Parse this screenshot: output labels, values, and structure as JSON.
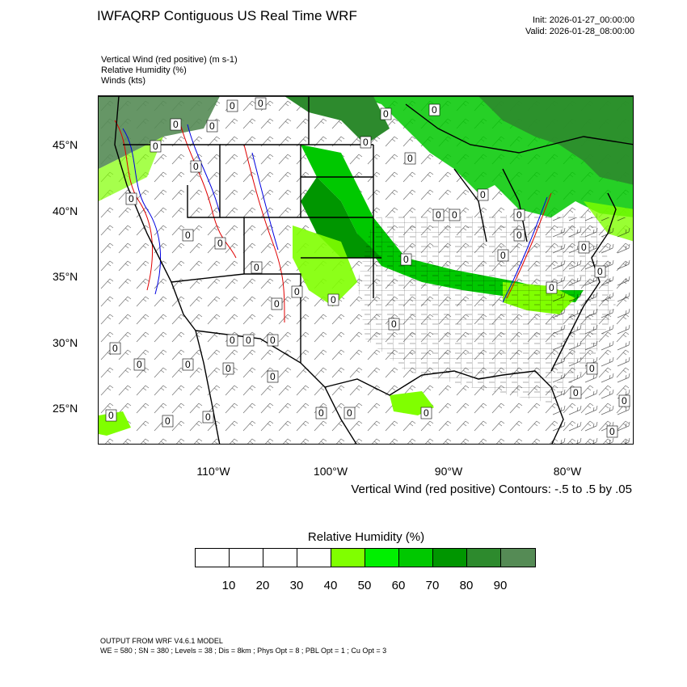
{
  "header": {
    "title": "IWFAQRP Contiguous US Real Time WRF",
    "init": "Init: 2026-01-27_00:00:00",
    "valid": "Valid: 2026-01-28_08:00:00"
  },
  "variables": [
    "Vertical Wind (red positive)   (m s-1)",
    "Relative Humidity   (%)",
    "Winds   (kts)"
  ],
  "map": {
    "lat_labels": [
      "45°N",
      "40°N",
      "35°N",
      "30°N",
      "25°N"
    ],
    "lon_labels": [
      "110°W",
      "100°W",
      "90°W",
      "80°W"
    ],
    "contour_note": "Vertical Wind (red positive) Contours: -.5 to .5 by .05",
    "contour_label": "0"
  },
  "colorbar": {
    "title": "Relative Humidity  (%)",
    "labels": [
      "10",
      "20",
      "30",
      "40",
      "50",
      "60",
      "70",
      "80",
      "90"
    ],
    "colors": [
      "#ffffff",
      "#ffffff",
      "#ffffff",
      "#ffffff",
      "#80ff00",
      "#00f000",
      "#00c800",
      "#009600",
      "#2d8a2d",
      "#558b55"
    ]
  },
  "footer": {
    "line1": "OUTPUT FROM WRF V4.6.1 MODEL",
    "line2": "WE = 580 ; SN = 380 ; Levels = 38 ; Dis = 8km ; Phys Opt = 8 ; PBL Opt = 1 ; Cu Opt = 3"
  }
}
